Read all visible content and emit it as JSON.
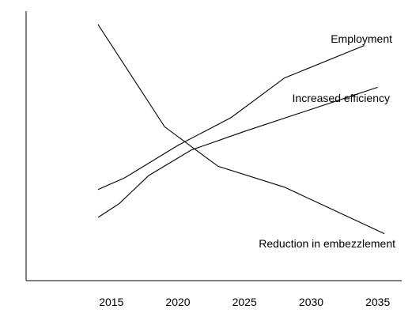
{
  "chart_data": {
    "type": "line",
    "title": "",
    "xlabel": "",
    "ylabel": "",
    "xlim": [
      2008.6,
      2036.8
    ],
    "ylim": [
      0,
      100
    ],
    "x_ticks": [
      {
        "label": "2015",
        "value": 2015
      },
      {
        "label": "2020",
        "value": 2020
      },
      {
        "label": "2025",
        "value": 2025
      },
      {
        "label": "2030",
        "value": 2030
      },
      {
        "label": "2035",
        "value": 2035
      }
    ],
    "grid": false,
    "legend": "none (series labeled directly on the lines)",
    "colors": {
      "axis": "#000000",
      "lines": "#000000",
      "text": "#000000"
    },
    "series": [
      {
        "name": "Employment",
        "points": [
          {
            "x": 2014,
            "y": 29
          },
          {
            "x": 2016,
            "y": 34
          },
          {
            "x": 2020,
            "y": 48
          },
          {
            "x": 2024,
            "y": 60
          },
          {
            "x": 2028,
            "y": 77
          },
          {
            "x": 2034,
            "y": 91
          }
        ]
      },
      {
        "name": "Increased efficiency",
        "points": [
          {
            "x": 2014,
            "y": 17
          },
          {
            "x": 2015.6,
            "y": 23
          },
          {
            "x": 2017.8,
            "y": 35
          },
          {
            "x": 2021,
            "y": 46
          },
          {
            "x": 2025,
            "y": 54
          },
          {
            "x": 2035,
            "y": 73
          }
        ]
      },
      {
        "name": "Reduction in embezzlement",
        "points": [
          {
            "x": 2014,
            "y": 100
          },
          {
            "x": 2019,
            "y": 56
          },
          {
            "x": 2023,
            "y": 39
          },
          {
            "x": 2028,
            "y": 30
          },
          {
            "x": 2035.5,
            "y": 10
          }
        ]
      }
    ]
  }
}
